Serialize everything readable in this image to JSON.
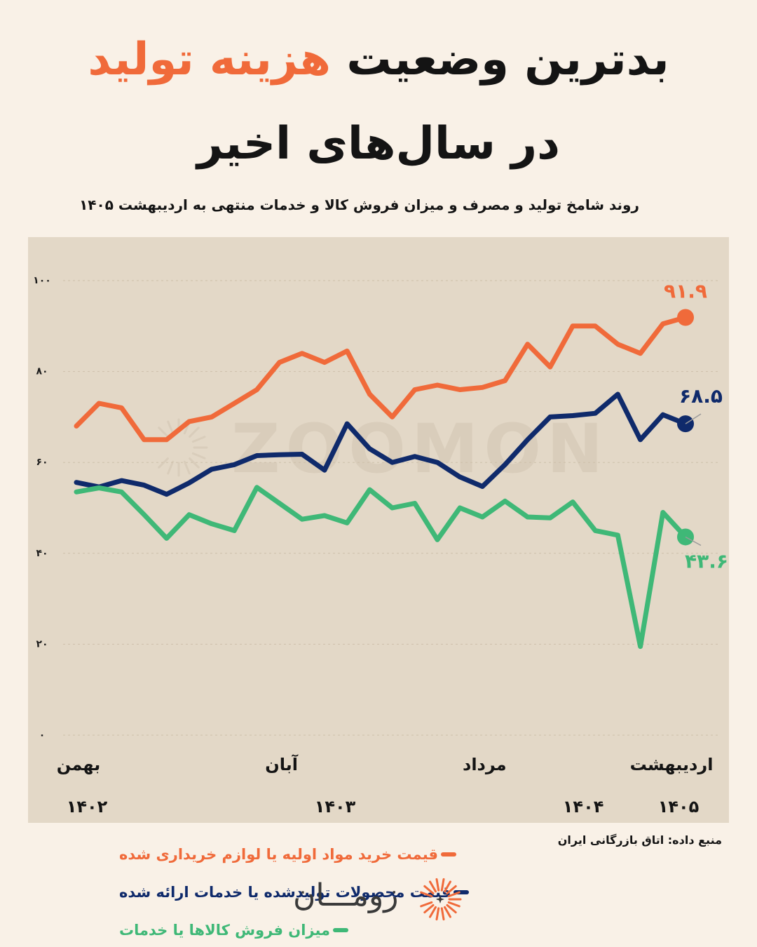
{
  "header": {
    "title_line1_pre": "بدترین وضعیت ",
    "title_line1_highlight": "هزینه تولید",
    "title_line2": "در سال‌های اخیر",
    "subtitle": "روند شامخ تولید و مصرف و میزان فروش کالا و خدمات منتهی به اردیبهشت ۱۴۰۵"
  },
  "footer": {
    "source": "منبع داده: اتاق بازرگانی ایران",
    "brand": "زومـــان",
    "watermark": "ZOOMON"
  },
  "colors": {
    "orange": "#f06a3a",
    "navy": "#0f2a6b",
    "green": "#3fb877",
    "background": "#f9f1e7",
    "panel": "#e3d8c7"
  },
  "chart_data": {
    "type": "line",
    "title": "",
    "xlabel": "",
    "ylabel": "",
    "ylim": [
      0,
      100
    ],
    "yticks": [
      "۰",
      "۲۰",
      "۴۰",
      "۶۰",
      "۸۰",
      "۱۰۰"
    ],
    "ytick_values": [
      0,
      20,
      40,
      60,
      80,
      100
    ],
    "grid": true,
    "legend_position": "bottom-left",
    "month_labels": [
      {
        "index": 0,
        "label": "بهمن"
      },
      {
        "index": 9,
        "label": "آبان"
      },
      {
        "index": 18,
        "label": "مرداد"
      },
      {
        "index": 27,
        "label": "اردیبهشت"
      }
    ],
    "year_labels": [
      {
        "index": 0,
        "label": "۱۴۰۲"
      },
      {
        "index": 11,
        "label": "۱۴۰۳"
      },
      {
        "index": 22,
        "label": "۱۴۰۴"
      },
      {
        "index": 27,
        "label": "۱۴۰۵"
      }
    ],
    "series": [
      {
        "name": "قیمت خرید مواد اولیه یا لوازم خریداری شده",
        "color": "#f06a3a",
        "end_label": "۹۱.۹",
        "values": [
          68,
          73,
          72,
          65,
          65,
          69,
          70,
          73,
          76,
          82,
          84,
          82,
          84.5,
          75,
          70,
          76,
          77,
          76,
          76.5,
          78,
          86,
          81,
          90,
          90,
          86,
          84,
          90.5,
          91.9
        ]
      },
      {
        "name": "قیمت محصولات تولیدشده یا خدمات ارائه شده",
        "color": "#0f2a6b",
        "end_label": "۶۸.۵",
        "values": [
          55.6,
          54.6,
          56,
          55,
          53,
          55.5,
          58.5,
          59.5,
          61.5,
          61.7,
          61.8,
          58.3,
          68.5,
          63,
          60,
          61.3,
          60,
          56.8,
          54.7,
          59.5,
          65,
          70,
          70.3,
          70.8,
          75,
          65,
          70.5,
          68.5
        ]
      },
      {
        "name": "میزان فروش کالاها یا خدمات",
        "color": "#3fb877",
        "end_label": "۴۳.۶",
        "values": [
          53.5,
          54.4,
          53.5,
          48.5,
          43.3,
          48.5,
          46.5,
          45,
          54.5,
          51,
          47.5,
          48.3,
          46.7,
          54,
          50,
          51,
          43,
          50,
          48,
          51.5,
          48,
          47.8,
          51.3,
          45,
          44,
          19.5,
          49,
          43.6
        ]
      }
    ]
  }
}
